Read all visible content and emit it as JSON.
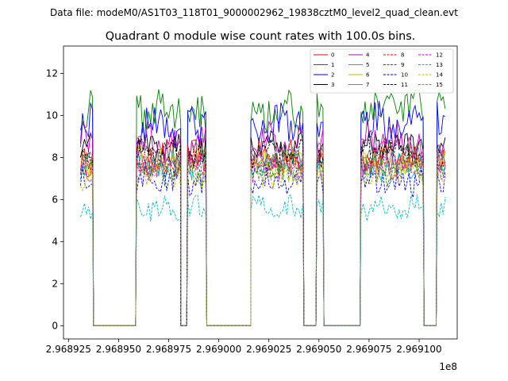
{
  "figure": {
    "suptitle": "Data file: modeM0/AS1T03_118T01_9000002962_19838cztM0_level2_quad_clean.evt"
  },
  "chart_data": {
    "type": "line",
    "title": "Quadrant 0 module wise count rates with 100.0s bins.",
    "xlabel": "",
    "ylabel": "",
    "x_offset_label": "1e8",
    "xlim": [
      2.9689225,
      2.969119
    ],
    "ylim": [
      -0.63,
      13.3
    ],
    "x_ticks": [
      2.968925,
      2.96895,
      2.968975,
      2.969,
      2.969025,
      2.96905,
      2.969075,
      2.9691
    ],
    "x_tick_labels": [
      "2.968925",
      "2.968950",
      "2.968975",
      "2.969000",
      "2.969025",
      "2.969050",
      "2.969075",
      "2.969100"
    ],
    "y_ticks": [
      0,
      2,
      4,
      6,
      8,
      10,
      12
    ],
    "y_tick_labels": [
      "0",
      "2",
      "4",
      "6",
      "8",
      "10",
      "12"
    ],
    "grid": false,
    "legend_position": "top-right",
    "legend_columns": 4,
    "segments": [
      {
        "x": [
          2.968931,
          2.9689375
        ],
        "on": true
      },
      {
        "x": [
          2.9689375,
          2.968959
        ],
        "on": false
      },
      {
        "x": [
          2.968959,
          2.968981
        ],
        "on": true
      },
      {
        "x": [
          2.968981,
          2.9689845
        ],
        "on": false
      },
      {
        "x": [
          2.9689845,
          2.968994
        ],
        "on": true
      },
      {
        "x": [
          2.968994,
          2.969016
        ],
        "on": false
      },
      {
        "x": [
          2.969016,
          2.9690425
        ],
        "on": true
      },
      {
        "x": [
          2.9690425,
          2.969049
        ],
        "on": false
      },
      {
        "x": [
          2.969049,
          2.9690525
        ],
        "on": true
      },
      {
        "x": [
          2.9690525,
          2.969071
        ],
        "on": false
      },
      {
        "x": [
          2.969071,
          2.9691025
        ],
        "on": true
      },
      {
        "x": [
          2.9691025,
          2.969109
        ],
        "on": false
      },
      {
        "x": [
          2.969109,
          2.969113
        ],
        "on": true
      }
    ],
    "x_step": 1e-06,
    "series": [
      {
        "name": "0",
        "color": "#ff0000",
        "dash": "solid",
        "level": 8.0,
        "spread": 0.7
      },
      {
        "name": "1",
        "color": "#008000",
        "dash": "solid",
        "level": 10.3,
        "spread": 0.9
      },
      {
        "name": "2",
        "color": "#0000ff",
        "dash": "solid",
        "level": 9.6,
        "spread": 0.9
      },
      {
        "name": "3",
        "color": "#000000",
        "dash": "solid",
        "level": 8.5,
        "spread": 0.7
      },
      {
        "name": "4",
        "color": "#c000c0",
        "dash": "solid",
        "level": 8.8,
        "spread": 0.7
      },
      {
        "name": "5",
        "color": "#00bfbf",
        "dash": "solid",
        "level": 7.6,
        "spread": 0.6
      },
      {
        "name": "6",
        "color": "#bfbf00",
        "dash": "solid",
        "level": 7.8,
        "spread": 0.6
      },
      {
        "name": "7",
        "color": "#808080",
        "dash": "solid",
        "level": 8.0,
        "spread": 0.6
      },
      {
        "name": "8",
        "color": "#ff0000",
        "dash": "dashed",
        "level": 7.8,
        "spread": 0.6
      },
      {
        "name": "9",
        "color": "#008000",
        "dash": "dashed",
        "level": 7.4,
        "spread": 0.6
      },
      {
        "name": "10",
        "color": "#0000ff",
        "dash": "dashed",
        "level": 6.9,
        "spread": 0.6
      },
      {
        "name": "11",
        "color": "#000000",
        "dash": "dashed",
        "level": 8.2,
        "spread": 0.6
      },
      {
        "name": "12",
        "color": "#c000c0",
        "dash": "dashed",
        "level": 7.5,
        "spread": 0.6
      },
      {
        "name": "13",
        "color": "#00bfbf",
        "dash": "dashed",
        "level": 5.6,
        "spread": 0.5
      },
      {
        "name": "14",
        "color": "#bfbf00",
        "dash": "dashed",
        "level": 7.2,
        "spread": 0.6
      },
      {
        "name": "15",
        "color": "#808080",
        "dash": "dashed",
        "level": 7.6,
        "spread": 0.6
      }
    ]
  }
}
